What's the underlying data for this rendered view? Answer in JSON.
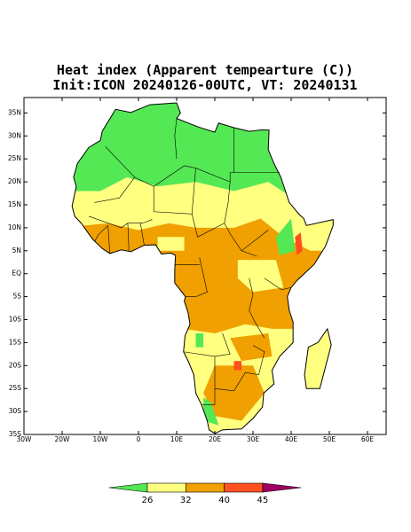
{
  "title": {
    "line1": "Heat index (Apparent tempearture (C))",
    "line2": "Init:ICON 20240126-00UTC, VT: 20240131"
  },
  "axes": {
    "lat_ticks": [
      {
        "value": 35,
        "label": "35N"
      },
      {
        "value": 30,
        "label": "30N"
      },
      {
        "value": 25,
        "label": "25N"
      },
      {
        "value": 20,
        "label": "20N"
      },
      {
        "value": 15,
        "label": "15N"
      },
      {
        "value": 10,
        "label": "10N"
      },
      {
        "value": 5,
        "label": "5N"
      },
      {
        "value": 0,
        "label": "EQ"
      },
      {
        "value": -5,
        "label": "5S"
      },
      {
        "value": -10,
        "label": "10S"
      },
      {
        "value": -15,
        "label": "15S"
      },
      {
        "value": -20,
        "label": "20S"
      },
      {
        "value": -25,
        "label": "25S"
      },
      {
        "value": -30,
        "label": "30S"
      },
      {
        "value": -35,
        "label": "35S"
      }
    ],
    "lon_ticks": [
      {
        "value": -30,
        "label": "30W"
      },
      {
        "value": -20,
        "label": "20W"
      },
      {
        "value": -10,
        "label": "10W"
      },
      0,
      {
        "value": 10,
        "label": "10E"
      },
      {
        "value": 20,
        "label": "20E"
      },
      {
        "value": 30,
        "label": "30E"
      },
      {
        "value": 40,
        "label": "40E"
      },
      {
        "value": 50,
        "label": "50E"
      },
      {
        "value": 60,
        "label": "60E"
      }
    ]
  },
  "colorbar": {
    "levels": [
      26,
      32,
      40,
      45
    ],
    "colors": [
      "#55e855",
      "#ffff80",
      "#f0a000",
      "#ff5020",
      "#a00060"
    ]
  }
}
